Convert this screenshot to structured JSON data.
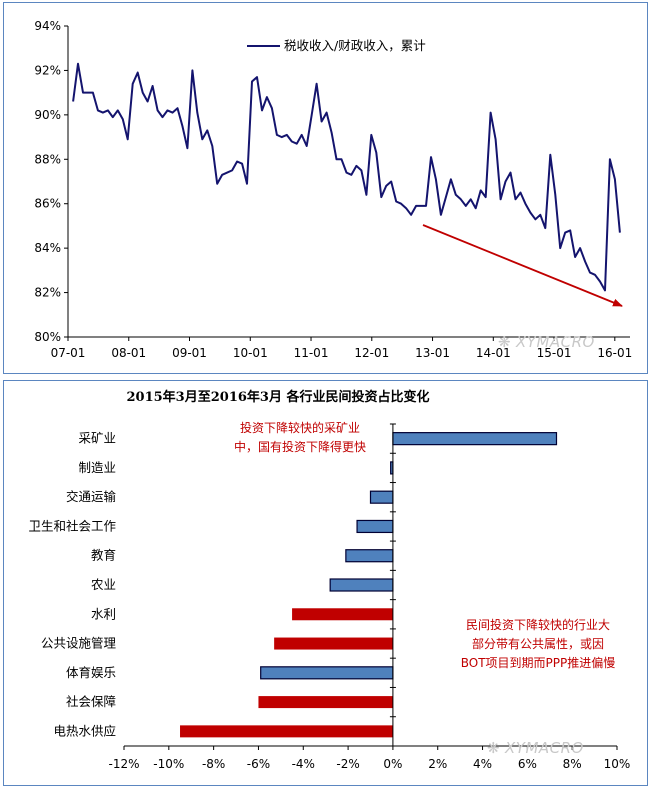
{
  "chart_data": [
    {
      "type": "line",
      "legend": "税收收入/财政收入，累计",
      "legend_position": "top-right",
      "x_ticks": [
        "07-01",
        "08-01",
        "09-01",
        "10-01",
        "11-01",
        "12-01",
        "13-01",
        "14-01",
        "15-01",
        "16-01"
      ],
      "y_ticks": [
        "80%",
        "82%",
        "84%",
        "86%",
        "88%",
        "90%",
        "92%",
        "94%"
      ],
      "ylim": [
        80,
        94
      ],
      "grid": false,
      "trend_arrow_color": "#c00000",
      "series": [
        {
          "color": "#14146e",
          "start": "2007-02",
          "end": "2016-02",
          "values": [
            90.6,
            92.3,
            91.0,
            91.0,
            91.0,
            90.2,
            90.1,
            90.2,
            89.9,
            90.2,
            89.8,
            88.9,
            91.4,
            91.9,
            91.0,
            90.6,
            91.3,
            90.2,
            89.9,
            90.2,
            90.1,
            90.3,
            89.5,
            88.5,
            92.0,
            90.1,
            88.9,
            89.3,
            88.6,
            86.9,
            87.3,
            87.4,
            87.5,
            87.9,
            87.8,
            86.9,
            91.5,
            91.7,
            90.2,
            90.8,
            90.3,
            89.1,
            89.0,
            89.1,
            88.8,
            88.7,
            89.1,
            88.6,
            90.0,
            91.4,
            89.7,
            90.1,
            89.2,
            88.0,
            88.0,
            87.4,
            87.3,
            87.7,
            87.5,
            86.4,
            89.1,
            88.3,
            86.3,
            86.8,
            87.0,
            86.1,
            86.0,
            85.8,
            85.5,
            85.9,
            85.9,
            85.9,
            88.1,
            87.1,
            85.5,
            86.3,
            87.1,
            86.4,
            86.2,
            85.9,
            86.2,
            85.8,
            86.6,
            86.3,
            90.1,
            88.9,
            86.2,
            87.0,
            87.4,
            86.2,
            86.5,
            86.0,
            85.6,
            85.3,
            85.5,
            84.9,
            88.2,
            86.4,
            84.0,
            84.7,
            84.8,
            83.6,
            84.0,
            83.4,
            82.9,
            82.8,
            82.5,
            82.1,
            88.0,
            87.1,
            84.7
          ]
        }
      ],
      "watermark": "XYMACRO"
    },
    {
      "type": "bar",
      "orientation": "horizontal",
      "title": "2015年3月至2016年3月 各行业民间投资占比变化",
      "categories": [
        "采矿业",
        "制造业",
        "交通运输",
        "卫生和社会工作",
        "教育",
        "农业",
        "水利",
        "公共设施管理",
        "体育娱乐",
        "社会保障",
        "电热水供应"
      ],
      "values": [
        7.3,
        -0.1,
        -1.0,
        -1.6,
        -2.1,
        -2.8,
        -4.5,
        -5.3,
        -5.9,
        -6.0,
        -9.5
      ],
      "colors": [
        "blue",
        "blue",
        "blue",
        "blue",
        "blue",
        "blue",
        "red",
        "red",
        "blue",
        "red",
        "red"
      ],
      "palette": {
        "blue": "#4f81bd",
        "red": "#c00000",
        "edge": "#000033"
      },
      "x_ticks": [
        "-12%",
        "-10%",
        "-8%",
        "-6%",
        "-4%",
        "-2%",
        "0%",
        "2%",
        "4%",
        "6%",
        "8%",
        "10%"
      ],
      "xlim": [
        -12,
        10
      ],
      "annotations": [
        {
          "lines": [
            "投资下降较快的采矿业",
            "中，国有投资下降得更快"
          ]
        },
        {
          "lines": [
            "民间投资下降较快的行业大",
            "部分带有公共属性，或因",
            "BOT项目到期而PPP推进偏慢"
          ]
        }
      ],
      "watermark": "XYMACRO"
    }
  ]
}
